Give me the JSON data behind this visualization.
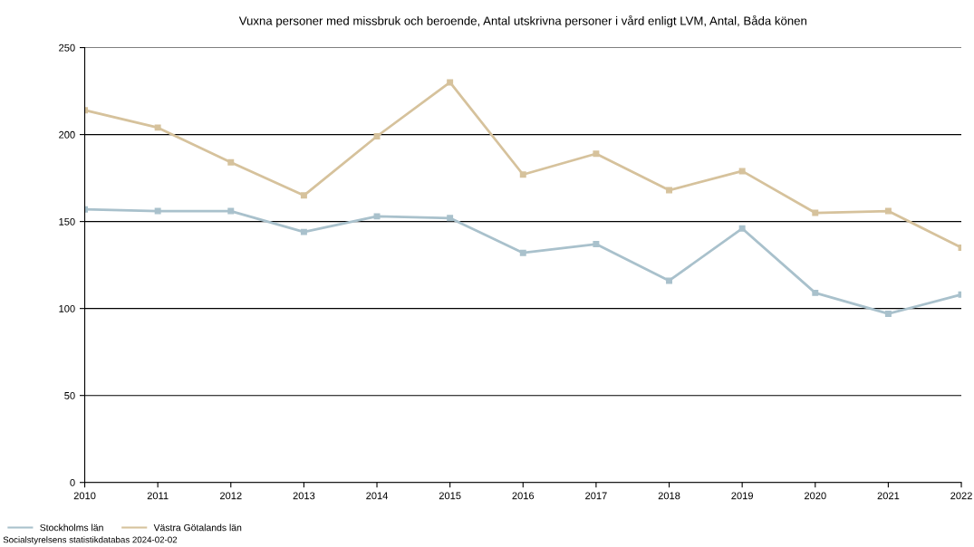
{
  "chart_data": {
    "type": "line",
    "title": "Vuxna personer med missbruk och beroende, Antal utskrivna personer i vård enligt LVM, Antal, Båda könen",
    "x": [
      2010,
      2011,
      2012,
      2013,
      2014,
      2015,
      2016,
      2017,
      2018,
      2019,
      2020,
      2021,
      2022
    ],
    "series": [
      {
        "name": "Stockholms län",
        "color": "#a9c1cc",
        "values": [
          157,
          156,
          156,
          144,
          153,
          152,
          132,
          137,
          116,
          146,
          109,
          97,
          108
        ]
      },
      {
        "name": "Västra Götalands län",
        "color": "#d6c29c",
        "values": [
          214,
          204,
          184,
          165,
          199,
          230,
          177,
          189,
          168,
          179,
          155,
          156,
          135
        ]
      }
    ],
    "xlim": [
      2010,
      2022
    ],
    "xticks": [
      2010,
      2011,
      2012,
      2013,
      2014,
      2015,
      2016,
      2017,
      2018,
      2019,
      2020,
      2021,
      2022
    ],
    "ylim": [
      0,
      250
    ],
    "yticks": [
      0,
      50,
      100,
      150,
      200,
      250
    ],
    "grid": "y",
    "legend": "bottom left",
    "marker": "square",
    "line_style": "solid",
    "annotations": [
      "Socialstyrelsens statistikdatabas 2024-02-02"
    ]
  }
}
